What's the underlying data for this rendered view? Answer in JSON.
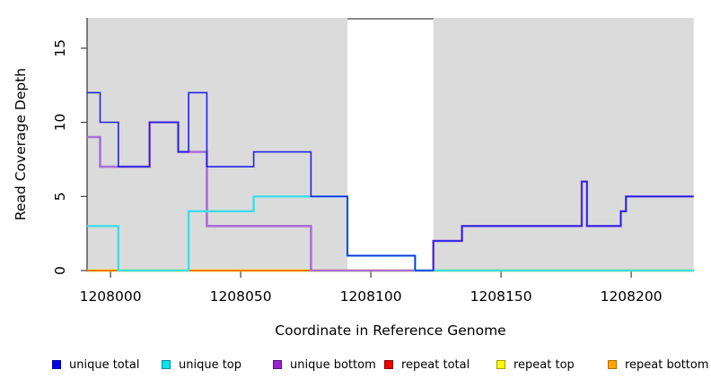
{
  "chart_data": {
    "type": "line",
    "subtype": "step",
    "title": "",
    "xlabel": "Coordinate in Reference Genome",
    "ylabel": "Read Coverage Depth",
    "xlim": [
      1207991,
      1208224
    ],
    "ylim": [
      0,
      17
    ],
    "x_ticks": [
      1208000,
      1208050,
      1208100,
      1208150,
      1208200
    ],
    "y_ticks": [
      0,
      5,
      10,
      15
    ],
    "grid": false,
    "legend_position": "bottom",
    "background_bands": [
      {
        "from": 1207991,
        "to": 1208091,
        "color": "#DBDBDB"
      },
      {
        "from": 1208091,
        "to": 1208124,
        "color": "#FFFFFF",
        "top_border": "#8A8A8A"
      },
      {
        "from": 1208124,
        "to": 1208224,
        "color": "#DBDBDB"
      }
    ],
    "series": [
      {
        "name": "unique total",
        "legend_color": "#0000EE",
        "legend_border": "#0000A0",
        "line_color": "#2222E8",
        "line_width": 1.6,
        "z": 6,
        "steps": [
          [
            1207991,
            12
          ],
          [
            1207996,
            10
          ],
          [
            1208003,
            7
          ],
          [
            1208015,
            10
          ],
          [
            1208026,
            8
          ],
          [
            1208030,
            12
          ],
          [
            1208037,
            7
          ],
          [
            1208055,
            8
          ],
          [
            1208077,
            5
          ],
          [
            1208091,
            1
          ],
          [
            1208117,
            0
          ],
          [
            1208124,
            2
          ],
          [
            1208135,
            3
          ],
          [
            1208181,
            6
          ],
          [
            1208183,
            3
          ],
          [
            1208196,
            4
          ],
          [
            1208198,
            5
          ],
          [
            1208224,
            5
          ]
        ]
      },
      {
        "name": "unique top",
        "legend_color": "#00E5EE",
        "legend_border": "#008B9E",
        "line_color": "#40DCE8",
        "line_width": 2.4,
        "z": 5,
        "steps": [
          [
            1207991,
            3
          ],
          [
            1208003,
            0
          ],
          [
            1208030,
            4
          ],
          [
            1208055,
            5
          ],
          [
            1208091,
            1
          ],
          [
            1208117,
            0
          ],
          [
            1208224,
            0
          ]
        ]
      },
      {
        "name": "unique bottom",
        "legend_color": "#9A22CC",
        "legend_border": "#5E1080",
        "line_color": "#A96FD8",
        "line_width": 2.6,
        "z": 4,
        "steps": [
          [
            1207991,
            9
          ],
          [
            1207996,
            7
          ],
          [
            1208015,
            10
          ],
          [
            1208026,
            8
          ],
          [
            1208037,
            3
          ],
          [
            1208077,
            0
          ],
          [
            1208124,
            2
          ],
          [
            1208135,
            3
          ],
          [
            1208181,
            6
          ],
          [
            1208183,
            3
          ],
          [
            1208196,
            4
          ],
          [
            1208198,
            5
          ],
          [
            1208224,
            5
          ]
        ]
      },
      {
        "name": "repeat total",
        "legend_color": "#EE0000",
        "legend_border": "#8B0000",
        "line_color": "#E60000",
        "line_width": 2.0,
        "z": 2,
        "steps": [
          [
            1207991,
            0
          ],
          [
            1208224,
            0
          ]
        ]
      },
      {
        "name": "repeat top",
        "legend_color": "#FFFF00",
        "legend_border": "#9E9E00",
        "line_color": "#FFFF00",
        "line_width": 2.8,
        "z": 1,
        "steps": [
          [
            1207991,
            0
          ],
          [
            1208224,
            0
          ]
        ]
      },
      {
        "name": "repeat bottom",
        "legend_color": "#FFA500",
        "legend_border": "#B36B00",
        "line_color": "#FF9D00",
        "line_width": 1.5,
        "z": 3,
        "steps": [
          [
            1207991,
            0
          ],
          [
            1208224,
            0
          ]
        ]
      }
    ]
  },
  "legend": {
    "item_x_positions": [
      58,
      180,
      304,
      428,
      553,
      677
    ]
  }
}
